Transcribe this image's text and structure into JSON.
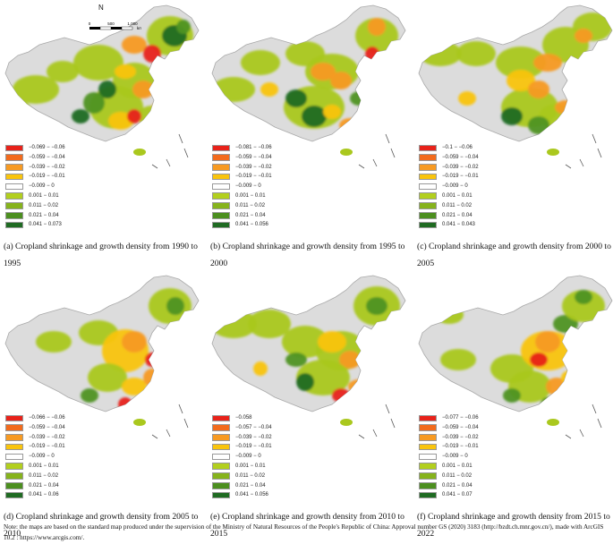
{
  "legend_colors": [
    "#e8221a",
    "#f26b1c",
    "#f79a22",
    "#f9c40d",
    "#ffffff",
    "#b2cf1e",
    "#86b31c",
    "#4c8f1f",
    "#1f6b22"
  ],
  "map_colors": {
    "land": "#dcdcdc",
    "border": "#a9a9a9",
    "growth": "#aac81e",
    "mid_green": "#4f9422",
    "dark_green": "#1f6b22",
    "shrink_light": "#f9c40d",
    "shrink_mid": "#f79a22",
    "shrink_dark": "#e8221a"
  },
  "north_arrow": "N",
  "scale_bar": {
    "ticks": [
      "0",
      "500",
      "1,000"
    ],
    "unit": "km"
  },
  "panels": [
    {
      "caption": "(a) Cropland shrinkage and growth  density from 1990 to 1995",
      "legend": [
        "−0.069 − −0.06",
        "−0.059 − −0.04",
        "−0.039 − −0.02",
        "−0.019 − −0.01",
        "−0.009 − 0",
        "0.001 − 0.01",
        "0.011 − 0.02",
        "0.021 − 0.04",
        "0.041 − 0.073"
      ]
    },
    {
      "caption": "(b) Cropland shrinkage and growth  density from 1995 to 2000",
      "legend": [
        "−0.081 − −0.06",
        "−0.059 − −0.04",
        "−0.039 − −0.02",
        "−0.019 − −0.01",
        "−0.009 − 0",
        "0.001 − 0.01",
        "0.011 − 0.02",
        "0.021 − 0.04",
        "0.041 − 0.056"
      ]
    },
    {
      "caption": "(c) Cropland shrinkage and growth  density from 2000 to 2005",
      "legend": [
        "−0.1 − −0.06",
        "−0.059 − −0.04",
        "−0.039 − −0.02",
        "−0.019 − −0.01",
        "−0.009 − 0",
        "0.001 − 0.01",
        "0.011 − 0.02",
        "0.021 − 0.04",
        "0.041 − 0.043"
      ]
    },
    {
      "caption": "(d) Cropland shrinkage and growth  density from 2005 to 2010",
      "legend": [
        "−0.066 − −0.06",
        "−0.059 − −0.04",
        "−0.039 − −0.02",
        "−0.019 − −0.01",
        "−0.009 − 0",
        "0.001 − 0.01",
        "0.011 − 0.02",
        "0.021 − 0.04",
        "0.041 − 0.06"
      ]
    },
    {
      "caption": "(e) Cropland shrinkage and growth  density from 2010 to 2015",
      "legend": [
        "−0.058",
        "−0.057 − −0.04",
        "−0.039 − −0.02",
        "−0.019 − −0.01",
        "−0.009 − 0",
        "0.001 − 0.01",
        "0.011 − 0.02",
        "0.021 − 0.04",
        "0.041 − 0.056"
      ]
    },
    {
      "caption": "(f) Cropland shrinkage and growth  density from 2015 to 2022",
      "legend": [
        "−0.077 − −0.06",
        "−0.059 − −0.04",
        "−0.039 − −0.02",
        "−0.019 − −0.01",
        "−0.009 − 0",
        "0.001 − 0.01",
        "0.011 − 0.02",
        "0.021 − 0.04",
        "0.041 − 0.07"
      ]
    }
  ],
  "note": "Note: the maps are based on the standard map produced under the supervision of the Ministry of Natural Resources of the People's Republic of China: Approval number GS (2020) 3183 (http://bzdt.ch.mnr.gov.cn/), made with ArcGIS 10.2 : https://www.arcgis.com/."
}
